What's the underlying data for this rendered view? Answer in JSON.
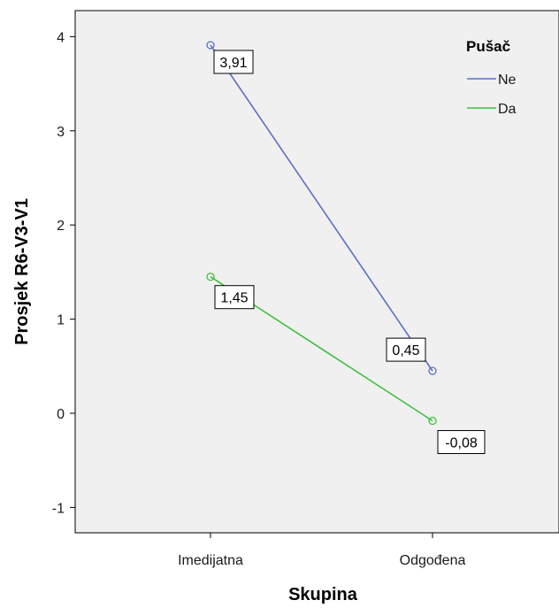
{
  "chart_data": {
    "type": "line",
    "title": "",
    "xlabel": "Skupina",
    "ylabel": "Prosjek R6-V3-V1",
    "categories": [
      "Imedijatna",
      "Odgođena"
    ],
    "y_ticks": [
      "-1",
      "0",
      "1",
      "2",
      "3",
      "4"
    ],
    "ylim": [
      -1.25,
      4.25
    ],
    "legend_title": "Pušač",
    "legend_position": "top-right",
    "series": [
      {
        "name": "Ne",
        "values": [
          3.91,
          0.45
        ],
        "labels": [
          "3,91",
          "0,45"
        ],
        "color": "#5a6fc7"
      },
      {
        "name": "Da",
        "values": [
          1.45,
          -0.08
        ],
        "labels": [
          "1,45",
          "-0,08"
        ],
        "color": "#3fbf3f"
      }
    ],
    "plot_background": "#f0f0f0",
    "grid": false
  }
}
